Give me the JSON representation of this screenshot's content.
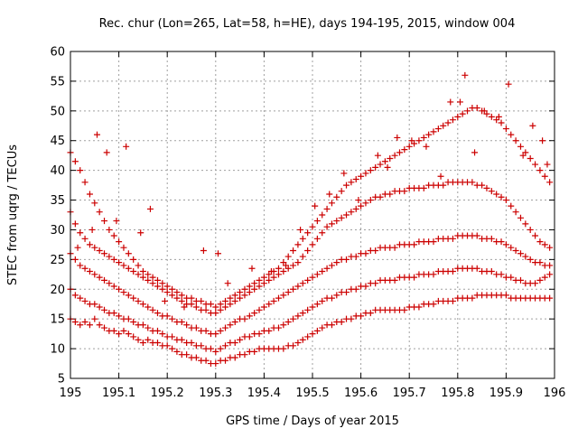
{
  "chart_data": {
    "type": "scatter",
    "title": "Rec. chur (Lon=265, Lat=58, h=HE), days 194-195, 2015, window 004",
    "xlabel": "GPS time / Days of year 2015",
    "ylabel": "STEC from uqrg / TECUs",
    "xlim": [
      195,
      196
    ],
    "ylim": [
      5,
      60
    ],
    "xticks": [
      "195",
      "195.1",
      "195.2",
      "195.3",
      "195.4",
      "195.5",
      "195.6",
      "195.7",
      "195.8",
      "195.9",
      "196"
    ],
    "yticks": [
      "5",
      "10",
      "15",
      "20",
      "25",
      "30",
      "35",
      "40",
      "45",
      "50",
      "55",
      "60"
    ],
    "grid": true,
    "legend": "none",
    "marker": "plus",
    "color": "#cc0000",
    "series": [
      {
        "x": [
          195.0,
          195.01,
          195.02,
          195.03,
          195.04,
          195.05,
          195.06,
          195.07,
          195.08,
          195.09,
          195.1,
          195.11,
          195.12,
          195.13,
          195.14,
          195.15,
          195.16,
          195.17,
          195.18,
          195.19,
          195.2,
          195.21,
          195.22,
          195.23,
          195.24,
          195.25,
          195.26,
          195.27,
          195.28,
          195.29,
          195.3,
          195.31,
          195.32,
          195.33,
          195.34,
          195.35,
          195.36,
          195.37,
          195.38,
          195.39,
          195.4,
          195.41,
          195.42,
          195.43,
          195.44,
          195.45,
          195.46,
          195.47,
          195.48,
          195.49,
          195.5,
          195.51,
          195.52,
          195.53,
          195.54,
          195.55,
          195.56,
          195.57,
          195.58,
          195.59,
          195.6,
          195.61,
          195.62,
          195.63,
          195.64,
          195.65,
          195.66,
          195.67,
          195.68,
          195.69,
          195.7,
          195.71,
          195.72,
          195.73,
          195.74,
          195.75,
          195.76,
          195.77,
          195.78,
          195.79,
          195.8,
          195.81,
          195.82,
          195.83,
          195.84,
          195.85,
          195.86,
          195.87,
          195.88,
          195.89,
          195.9,
          195.91,
          195.92,
          195.93,
          195.94,
          195.95,
          195.96,
          195.97,
          195.98,
          195.99
        ],
        "y": [
          15.0,
          14.5,
          14.0,
          14.5,
          14.0,
          15.0,
          14.0,
          13.5,
          13.0,
          13.0,
          12.5,
          13.0,
          12.5,
          12.0,
          11.5,
          11.0,
          11.5,
          11.0,
          11.0,
          10.5,
          10.5,
          10.0,
          9.5,
          9.0,
          9.0,
          8.5,
          8.5,
          8.0,
          8.0,
          7.5,
          7.5,
          8.0,
          8.0,
          8.5,
          8.5,
          9.0,
          9.0,
          9.5,
          9.5,
          10.0,
          10.0,
          10.0,
          10.0,
          10.0,
          10.0,
          10.5,
          10.5,
          11.0,
          11.5,
          12.0,
          12.5,
          13.0,
          13.5,
          14.0,
          14.0,
          14.5,
          14.5,
          15.0,
          15.0,
          15.5,
          15.5,
          16.0,
          16.0,
          16.5,
          16.5,
          16.5,
          16.5,
          16.5,
          16.5,
          16.5,
          17.0,
          17.0,
          17.0,
          17.5,
          17.5,
          17.5,
          18.0,
          18.0,
          18.0,
          18.0,
          18.5,
          18.5,
          18.5,
          18.5,
          19.0,
          19.0,
          19.0,
          19.0,
          19.0,
          19.0,
          19.0,
          18.5,
          18.5,
          18.5,
          18.5,
          18.5,
          18.5,
          18.5,
          18.5,
          18.5
        ]
      },
      {
        "x": [
          195.0,
          195.01,
          195.02,
          195.03,
          195.04,
          195.05,
          195.06,
          195.07,
          195.08,
          195.09,
          195.1,
          195.11,
          195.12,
          195.13,
          195.14,
          195.15,
          195.16,
          195.17,
          195.18,
          195.19,
          195.2,
          195.21,
          195.22,
          195.23,
          195.24,
          195.25,
          195.26,
          195.27,
          195.28,
          195.29,
          195.3,
          195.31,
          195.32,
          195.33,
          195.34,
          195.35,
          195.36,
          195.37,
          195.38,
          195.39,
          195.4,
          195.41,
          195.42,
          195.43,
          195.44,
          195.45,
          195.46,
          195.47,
          195.48,
          195.49,
          195.5,
          195.51,
          195.52,
          195.53,
          195.54,
          195.55,
          195.56,
          195.57,
          195.58,
          195.59,
          195.6,
          195.61,
          195.62,
          195.63,
          195.64,
          195.65,
          195.66,
          195.67,
          195.68,
          195.69,
          195.7,
          195.71,
          195.72,
          195.73,
          195.74,
          195.75,
          195.76,
          195.77,
          195.78,
          195.79,
          195.8,
          195.81,
          195.82,
          195.83,
          195.84,
          195.85,
          195.86,
          195.87,
          195.88,
          195.89,
          195.9,
          195.91,
          195.92,
          195.93,
          195.94,
          195.95,
          195.96,
          195.97,
          195.98,
          195.99
        ],
        "y": [
          20.0,
          19.0,
          18.5,
          18.0,
          17.5,
          17.5,
          17.0,
          16.5,
          16.0,
          16.0,
          15.5,
          15.0,
          15.0,
          14.5,
          14.0,
          14.0,
          13.5,
          13.0,
          13.0,
          12.5,
          12.0,
          12.0,
          11.5,
          11.5,
          11.0,
          11.0,
          10.5,
          10.5,
          10.0,
          10.0,
          9.5,
          10.0,
          10.5,
          11.0,
          11.0,
          11.5,
          12.0,
          12.0,
          12.5,
          12.5,
          13.0,
          13.0,
          13.5,
          13.5,
          14.0,
          14.5,
          15.0,
          15.5,
          16.0,
          16.5,
          17.0,
          17.5,
          18.0,
          18.5,
          18.5,
          19.0,
          19.5,
          19.5,
          20.0,
          20.0,
          20.5,
          20.5,
          21.0,
          21.0,
          21.5,
          21.5,
          21.5,
          21.5,
          22.0,
          22.0,
          22.0,
          22.0,
          22.5,
          22.5,
          22.5,
          22.5,
          23.0,
          23.0,
          23.0,
          23.0,
          23.5,
          23.5,
          23.5,
          23.5,
          23.5,
          23.0,
          23.0,
          23.0,
          22.5,
          22.5,
          22.0,
          22.0,
          21.5,
          21.5,
          21.0,
          21.0,
          21.0,
          21.5,
          22.0,
          22.5
        ]
      },
      {
        "x": [
          195.0,
          195.01,
          195.02,
          195.03,
          195.04,
          195.05,
          195.06,
          195.07,
          195.08,
          195.09,
          195.1,
          195.11,
          195.12,
          195.13,
          195.14,
          195.15,
          195.16,
          195.17,
          195.18,
          195.19,
          195.2,
          195.21,
          195.22,
          195.23,
          195.24,
          195.25,
          195.26,
          195.27,
          195.28,
          195.29,
          195.3,
          195.31,
          195.32,
          195.33,
          195.34,
          195.35,
          195.36,
          195.37,
          195.38,
          195.39,
          195.4,
          195.41,
          195.42,
          195.43,
          195.44,
          195.45,
          195.46,
          195.47,
          195.48,
          195.49,
          195.5,
          195.51,
          195.52,
          195.53,
          195.54,
          195.55,
          195.56,
          195.57,
          195.58,
          195.59,
          195.6,
          195.61,
          195.62,
          195.63,
          195.64,
          195.65,
          195.66,
          195.67,
          195.68,
          195.69,
          195.7,
          195.71,
          195.72,
          195.73,
          195.74,
          195.75,
          195.76,
          195.77,
          195.78,
          195.79,
          195.8,
          195.81,
          195.82,
          195.83,
          195.84,
          195.85,
          195.86,
          195.87,
          195.88,
          195.89,
          195.9,
          195.91,
          195.92,
          195.93,
          195.94,
          195.95,
          195.96,
          195.97,
          195.98,
          195.99
        ],
        "y": [
          26.0,
          25.0,
          24.0,
          23.5,
          23.0,
          22.5,
          22.0,
          21.5,
          21.0,
          20.5,
          20.0,
          19.5,
          19.0,
          18.5,
          18.0,
          17.5,
          17.0,
          16.5,
          16.0,
          15.5,
          15.5,
          15.0,
          14.5,
          14.5,
          14.0,
          13.5,
          13.5,
          13.0,
          13.0,
          12.5,
          12.5,
          13.0,
          13.5,
          14.0,
          14.5,
          15.0,
          15.0,
          15.5,
          16.0,
          16.5,
          17.0,
          17.5,
          18.0,
          18.5,
          19.0,
          19.5,
          20.0,
          20.5,
          21.0,
          21.5,
          22.0,
          22.5,
          23.0,
          23.5,
          24.0,
          24.5,
          25.0,
          25.0,
          25.5,
          25.5,
          26.0,
          26.0,
          26.5,
          26.5,
          27.0,
          27.0,
          27.0,
          27.0,
          27.5,
          27.5,
          27.5,
          27.5,
          28.0,
          28.0,
          28.0,
          28.0,
          28.5,
          28.5,
          28.5,
          28.5,
          29.0,
          29.0,
          29.0,
          29.0,
          29.0,
          28.5,
          28.5,
          28.5,
          28.0,
          28.0,
          27.5,
          27.0,
          26.5,
          26.0,
          25.5,
          25.0,
          24.5,
          24.5,
          24.0,
          24.0
        ]
      },
      {
        "x": [
          195.0,
          195.01,
          195.02,
          195.03,
          195.04,
          195.05,
          195.06,
          195.07,
          195.08,
          195.09,
          195.1,
          195.11,
          195.12,
          195.13,
          195.14,
          195.15,
          195.16,
          195.17,
          195.18,
          195.19,
          195.2,
          195.21,
          195.22,
          195.23,
          195.24,
          195.25,
          195.26,
          195.27,
          195.28,
          195.29,
          195.3,
          195.31,
          195.32,
          195.33,
          195.34,
          195.35,
          195.36,
          195.37,
          195.38,
          195.39,
          195.4,
          195.41,
          195.42,
          195.43,
          195.44,
          195.45,
          195.46,
          195.47,
          195.48,
          195.49,
          195.5,
          195.51,
          195.52,
          195.53,
          195.54,
          195.55,
          195.56,
          195.57,
          195.58,
          195.59,
          195.6,
          195.61,
          195.62,
          195.63,
          195.64,
          195.65,
          195.66,
          195.67,
          195.68,
          195.69,
          195.7,
          195.71,
          195.72,
          195.73,
          195.74,
          195.75,
          195.76,
          195.77,
          195.78,
          195.79,
          195.8,
          195.81,
          195.82,
          195.83,
          195.84,
          195.85,
          195.86,
          195.87,
          195.88,
          195.89,
          195.9,
          195.91,
          195.92,
          195.93,
          195.94,
          195.95,
          195.96,
          195.97,
          195.98,
          195.99
        ],
        "y": [
          33.0,
          31.0,
          29.5,
          28.5,
          27.5,
          27.0,
          26.5,
          26.0,
          25.5,
          25.0,
          24.5,
          24.0,
          23.5,
          23.0,
          22.5,
          22.0,
          21.5,
          21.0,
          20.5,
          20.0,
          19.5,
          19.0,
          18.5,
          18.0,
          17.5,
          17.5,
          17.0,
          16.5,
          16.5,
          16.0,
          16.0,
          16.5,
          17.0,
          17.5,
          18.0,
          18.5,
          19.0,
          19.5,
          20.0,
          20.5,
          21.0,
          21.5,
          22.0,
          22.5,
          23.0,
          23.5,
          24.0,
          24.5,
          25.5,
          26.5,
          27.5,
          28.5,
          29.5,
          30.5,
          31.0,
          31.5,
          32.0,
          32.5,
          33.0,
          33.5,
          34.0,
          34.5,
          35.0,
          35.5,
          35.5,
          36.0,
          36.0,
          36.5,
          36.5,
          36.5,
          37.0,
          37.0,
          37.0,
          37.0,
          37.5,
          37.5,
          37.5,
          37.5,
          38.0,
          38.0,
          38.0,
          38.0,
          38.0,
          38.0,
          37.5,
          37.5,
          37.0,
          36.5,
          36.0,
          35.5,
          35.0,
          34.0,
          33.0,
          32.0,
          31.0,
          30.0,
          29.0,
          28.0,
          27.5,
          27.0
        ]
      },
      {
        "x": [
          195.0,
          195.01,
          195.02,
          195.03,
          195.04,
          195.05,
          195.06,
          195.07,
          195.08,
          195.09,
          195.1,
          195.11,
          195.12,
          195.13,
          195.14,
          195.15,
          195.16,
          195.17,
          195.18,
          195.19,
          195.2,
          195.21,
          195.22,
          195.23,
          195.24,
          195.25,
          195.26,
          195.27,
          195.28,
          195.29,
          195.3,
          195.31,
          195.32,
          195.33,
          195.34,
          195.35,
          195.36,
          195.37,
          195.38,
          195.39,
          195.4,
          195.41,
          195.42,
          195.43,
          195.44,
          195.45,
          195.46,
          195.47,
          195.48,
          195.49,
          195.5,
          195.51,
          195.52,
          195.53,
          195.54,
          195.55,
          195.56,
          195.57,
          195.58,
          195.59,
          195.6,
          195.61,
          195.62,
          195.63,
          195.64,
          195.65,
          195.66,
          195.67,
          195.68,
          195.69,
          195.7,
          195.71,
          195.72,
          195.73,
          195.74,
          195.75,
          195.76,
          195.77,
          195.78,
          195.79,
          195.8,
          195.81,
          195.82,
          195.83,
          195.84,
          195.85,
          195.86,
          195.87,
          195.88,
          195.89,
          195.9,
          195.91,
          195.92,
          195.93,
          195.94,
          195.95,
          195.96,
          195.97,
          195.98,
          195.99
        ],
        "y": [
          43.0,
          41.5,
          40.0,
          38.0,
          36.0,
          34.5,
          33.0,
          31.5,
          30.0,
          29.0,
          28.0,
          27.0,
          26.0,
          25.0,
          24.0,
          23.0,
          22.5,
          22.0,
          21.5,
          21.0,
          20.5,
          20.0,
          19.5,
          19.0,
          18.5,
          18.5,
          18.0,
          18.0,
          17.5,
          17.5,
          17.0,
          17.5,
          18.0,
          18.5,
          19.0,
          19.5,
          20.0,
          20.5,
          21.0,
          21.5,
          22.0,
          22.5,
          23.0,
          23.5,
          24.5,
          25.5,
          26.5,
          27.5,
          28.5,
          29.5,
          30.5,
          31.5,
          32.5,
          33.5,
          34.5,
          35.5,
          36.5,
          37.5,
          38.0,
          38.5,
          39.0,
          39.5,
          40.0,
          40.5,
          41.0,
          41.5,
          42.0,
          42.5,
          43.0,
          43.5,
          44.0,
          44.5,
          45.0,
          45.5,
          46.0,
          46.5,
          47.0,
          47.5,
          48.0,
          48.5,
          49.0,
          49.5,
          50.0,
          50.5,
          50.5,
          50.0,
          49.5,
          49.0,
          48.5,
          48.0,
          47.0,
          46.0,
          45.0,
          44.0,
          43.0,
          42.0,
          41.0,
          40.0,
          39.0,
          38.0
        ]
      },
      {
        "x": [
          195.015,
          195.045,
          195.055,
          195.075,
          195.095,
          195.115,
          195.145,
          195.165,
          195.195,
          195.235,
          195.275,
          195.305,
          195.325,
          195.375,
          195.415,
          195.445,
          195.475,
          195.505,
          195.535,
          195.565,
          195.595,
          195.635,
          195.655,
          195.675,
          195.705,
          195.735,
          195.765,
          195.785,
          195.805,
          195.815,
          195.835,
          195.855,
          195.885,
          195.905,
          195.935,
          195.955,
          195.975,
          195.985
        ],
        "y": [
          27.0,
          30.0,
          46.0,
          43.0,
          31.5,
          44.0,
          29.5,
          33.5,
          18.0,
          17.0,
          26.5,
          26.0,
          21.0,
          23.5,
          23.0,
          24.0,
          30.0,
          34.0,
          36.0,
          39.5,
          35.0,
          42.5,
          40.5,
          45.5,
          45.0,
          44.0,
          39.0,
          51.5,
          51.5,
          56.0,
          43.0,
          50.0,
          49.0,
          54.5,
          42.5,
          47.5,
          45.0,
          41.0
        ]
      }
    ]
  }
}
